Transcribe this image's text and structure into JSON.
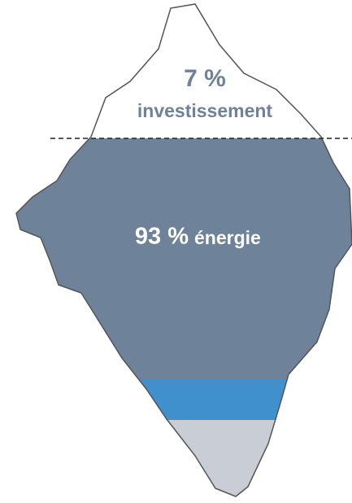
{
  "tip": {
    "value_label": "7 %",
    "label": "investissement"
  },
  "body": {
    "value_label": "93 %",
    "label": "énergie"
  }
}
